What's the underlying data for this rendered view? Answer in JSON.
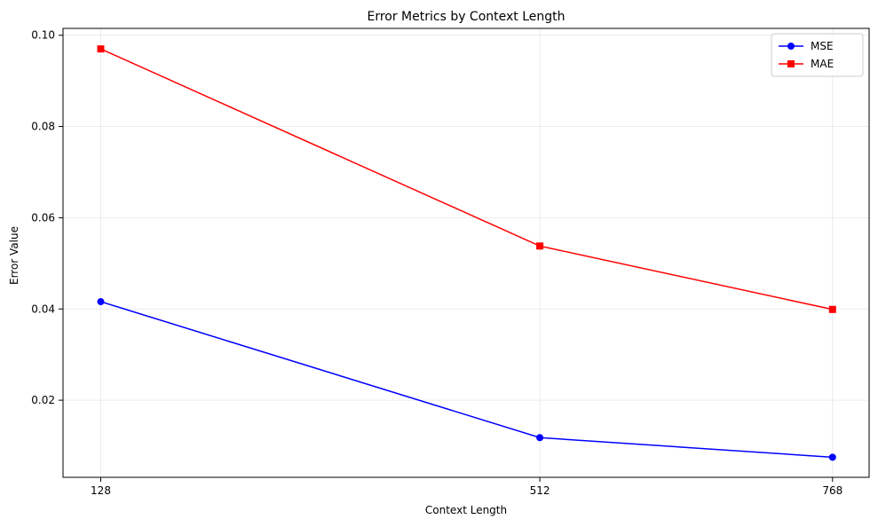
{
  "chart_data": {
    "type": "line",
    "title": "Error Metrics by Context Length",
    "xlabel": "Context Length",
    "ylabel": "Error Value",
    "x": [
      128,
      512,
      768
    ],
    "x_tick_labels": [
      "128",
      "512",
      "768"
    ],
    "y_ticks": [
      0.02,
      0.04,
      0.06,
      0.08,
      0.1
    ],
    "y_tick_labels": [
      "0.02",
      "0.04",
      "0.06",
      "0.08",
      "0.10"
    ],
    "xlim": [
      95,
      800
    ],
    "ylim": [
      0.0031,
      0.1015
    ],
    "grid": true,
    "legend_position": "top-right",
    "series": [
      {
        "name": "MSE",
        "values": [
          0.0416,
          0.0118,
          0.0075
        ],
        "color": "#0000ff",
        "marker": "circle"
      },
      {
        "name": "MAE",
        "values": [
          0.097,
          0.0538,
          0.0399
        ],
        "color": "#ff0000",
        "marker": "square"
      }
    ]
  }
}
